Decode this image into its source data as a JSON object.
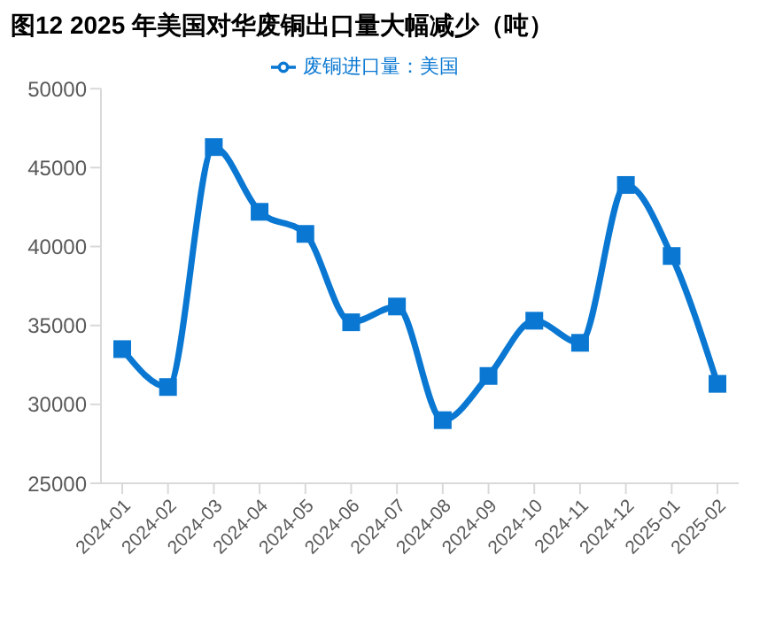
{
  "chart_data": {
    "type": "line",
    "title": "图12 2025 年美国对华废铜出口量大幅减少（吨）",
    "categories": [
      "2024-01",
      "2024-02",
      "2024-03",
      "2024-04",
      "2024-05",
      "2024-06",
      "2024-07",
      "2024-08",
      "2024-09",
      "2024-10",
      "2024-11",
      "2024-12",
      "2025-01",
      "2025-02"
    ],
    "series": [
      {
        "name": "废铜进口量：美国",
        "color": "#0a78d2",
        "values": [
          33500,
          31100,
          46300,
          42200,
          40800,
          35200,
          36200,
          29000,
          31800,
          35300,
          33900,
          43900,
          39400,
          31300
        ]
      }
    ],
    "ylim": [
      25000,
      50000
    ],
    "yticks": [
      25000,
      30000,
      35000,
      40000,
      45000,
      50000
    ],
    "grid": false,
    "legend": "top",
    "marker": "square",
    "line_style": "solid"
  }
}
